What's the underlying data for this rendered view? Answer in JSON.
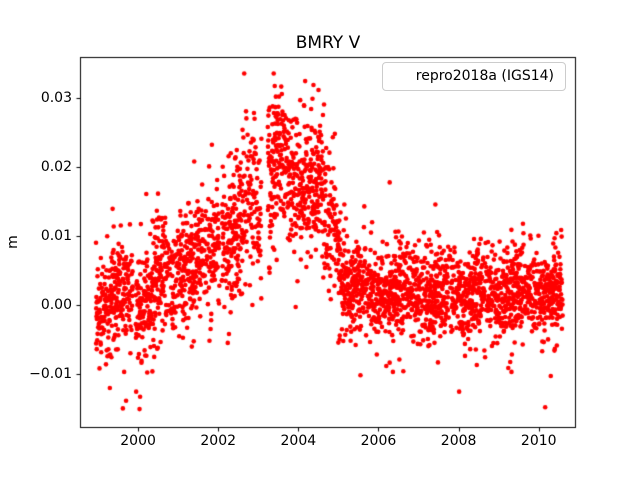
{
  "chart_data": {
    "type": "scatter",
    "title": "BMRY V",
    "xlabel": "",
    "ylabel": "m",
    "grid": false,
    "legend": {
      "label": "repro2018a (IGS14)",
      "position": "upper right"
    },
    "series": [
      {
        "name": "repro2018a (IGS14)",
        "color": "#ff0000",
        "marker": "dot",
        "marker_radius_px": 2.3
      }
    ],
    "xlim": [
      1998.55,
      2010.93
    ],
    "ylim": [
      -0.0177,
      0.036
    ],
    "xticks": {
      "values": [
        2000,
        2002,
        2004,
        2006,
        2008,
        2010
      ],
      "labels": [
        "2000",
        "2002",
        "2004",
        "2006",
        "2008",
        "2010"
      ]
    },
    "yticks": {
      "values": [
        -0.01,
        0.0,
        0.01,
        0.02,
        0.03
      ],
      "labels": [
        "−0.01",
        "0.00",
        "0.01",
        "0.02",
        "0.03"
      ]
    },
    "axis_color": "#000000",
    "background_color": "#ffffff",
    "generator": {
      "seed": 7,
      "t_start": 1998.95,
      "t_end": 2010.6,
      "step": 0.003,
      "gaps": [
        [
          2003.08,
          2003.235
        ],
        [
          1999.865,
          1999.935
        ],
        [
          2002.03,
          2002.09
        ]
      ],
      "trend": [
        [
          1998.95,
          0.0008
        ],
        [
          2000.0,
          0.0014
        ],
        [
          2001.0,
          0.0048
        ],
        [
          2002.0,
          0.0086
        ],
        [
          2002.5,
          0.0118
        ],
        [
          2002.9,
          0.0158
        ],
        [
          2003.08,
          0.0152
        ],
        [
          2003.24,
          0.0188
        ],
        [
          2003.5,
          0.0196
        ],
        [
          2004.0,
          0.0182
        ],
        [
          2004.5,
          0.0164
        ],
        [
          2004.88,
          0.0126
        ],
        [
          2005.08,
          0.0044
        ],
        [
          2005.3,
          0.0021
        ],
        [
          2006.5,
          0.0018
        ],
        [
          2008.5,
          0.0017
        ],
        [
          2010.6,
          0.002
        ]
      ],
      "sigma": [
        [
          1998.95,
          0.004
        ],
        [
          2002.0,
          0.0046
        ],
        [
          2002.7,
          0.0056
        ],
        [
          2004.88,
          0.0056
        ],
        [
          2005.1,
          0.004
        ],
        [
          2005.35,
          0.0033
        ],
        [
          2010.6,
          0.0033
        ]
      ],
      "seasonal_amp": [
        [
          1998.95,
          0.0015
        ],
        [
          2004.9,
          0.0013
        ],
        [
          2005.3,
          0.0008
        ],
        [
          2010.6,
          0.0008
        ]
      ],
      "seasonal_phase": 0.32,
      "density_base": 0.8,
      "density_harmonics": [
        [
          1,
          0.16,
          0.1
        ],
        [
          2,
          0.09,
          0.32
        ]
      ],
      "low_tail": {
        "before": 2000.5,
        "prob": 0.05,
        "min": 0.003,
        "max": 0.01,
        "flat_after": 2005.1,
        "flat_prob": 0.02,
        "flat_min": 0.003,
        "flat_max": 0.0085
      },
      "clamp": [
        -0.0151,
        0.0336
      ],
      "outliers": [
        [
          2003.385,
          0.0336
        ],
        [
          2003.41,
          0.0318
        ],
        [
          2006.28,
          0.0178
        ],
        [
          2007.42,
          0.0146
        ],
        [
          1999.62,
          -0.015
        ],
        [
          1999.7,
          -0.0139
        ],
        [
          2000.05,
          -0.0133
        ],
        [
          2005.55,
          -0.0102
        ],
        [
          2006.62,
          -0.0096
        ],
        [
          2009.32,
          -0.0097
        ],
        [
          2010.3,
          -0.0103
        ]
      ]
    }
  }
}
